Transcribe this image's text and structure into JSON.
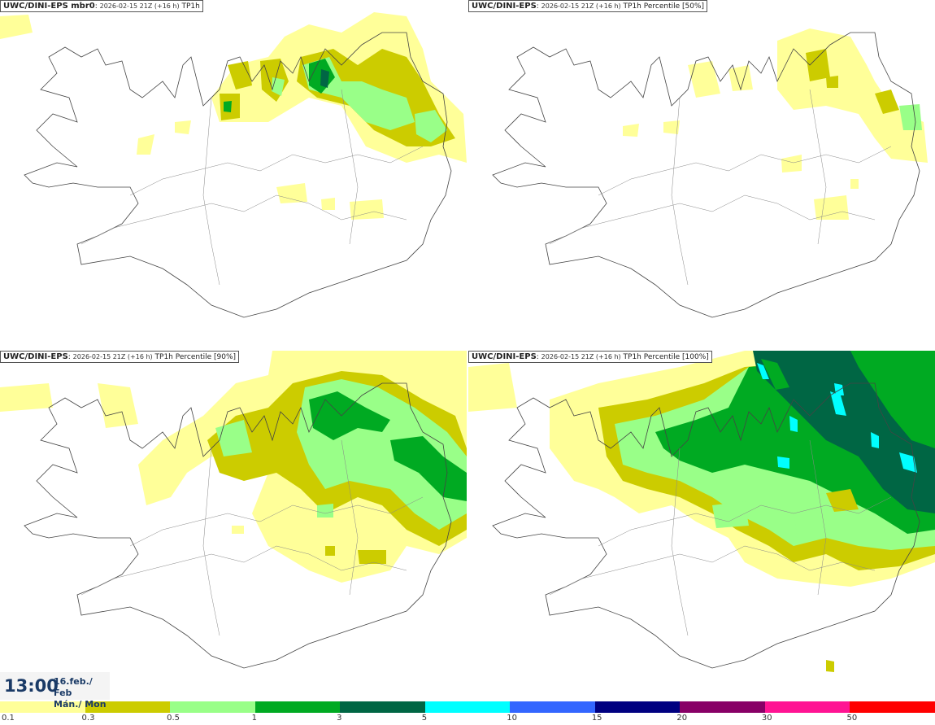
{
  "panels": [
    {
      "model": "UWC/DINI-EPS mbr0",
      "run": "2026-02-15 21Z (+16 h)",
      "product": "TP1h"
    },
    {
      "model": "UWC/DINI-EPS",
      "run": "2026-02-15 21Z (+16 h)",
      "product": "TP1h Percentile [50%]"
    },
    {
      "model": "UWC/DINI-EPS",
      "run": "2026-02-15 21Z (+16 h)",
      "product": "TP1h Percentile [90%]"
    },
    {
      "model": "UWC/DINI-EPS",
      "run": "2026-02-15 21Z (+16 h)",
      "product": "TP1h Percentile [100%]"
    }
  ],
  "valid_time": {
    "time": "13:00",
    "date_line1": "16.feb./ Feb",
    "date_line2": "Mán./ Mon"
  },
  "scale": {
    "colors": [
      "#ffff99",
      "#cccc00",
      "#99ff88",
      "#00aa22",
      "#006644",
      "#00ffff",
      "#3366ff",
      "#000080",
      "#880066",
      "#ff1493",
      "#ff0000"
    ],
    "labels": [
      "0.1",
      "0.3",
      "0.5",
      "1",
      "3",
      "5",
      "10",
      "15",
      "20",
      "30",
      "50"
    ]
  }
}
